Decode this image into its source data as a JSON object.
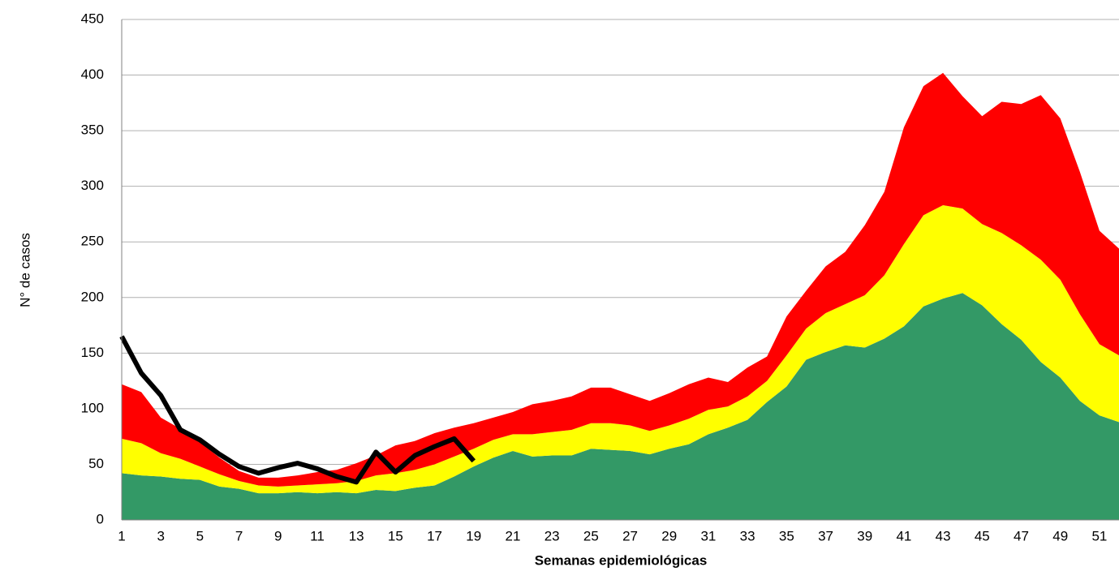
{
  "chart_data": {
    "type": "area",
    "xlabel": "Semanas epidemiológicas",
    "ylabel": "N° de  casos",
    "x": [
      1,
      2,
      3,
      4,
      5,
      6,
      7,
      8,
      9,
      10,
      11,
      12,
      13,
      14,
      15,
      16,
      17,
      18,
      19,
      20,
      21,
      22,
      23,
      24,
      25,
      26,
      27,
      28,
      29,
      30,
      31,
      32,
      33,
      34,
      35,
      36,
      37,
      38,
      39,
      40,
      41,
      42,
      43,
      44,
      45,
      46,
      47,
      48,
      49,
      50,
      51,
      52
    ],
    "xlim": [
      1,
      52
    ],
    "xticks": [
      1,
      3,
      5,
      7,
      9,
      11,
      13,
      15,
      17,
      19,
      21,
      23,
      25,
      27,
      29,
      31,
      33,
      35,
      37,
      39,
      41,
      43,
      45,
      47,
      49,
      51
    ],
    "ylim": [
      0,
      450
    ],
    "yticks": [
      0,
      50,
      100,
      150,
      200,
      250,
      300,
      350,
      400,
      450
    ],
    "grid": true,
    "series": [
      {
        "type": "area",
        "color": "#339966",
        "values": [
          42,
          40,
          39,
          37,
          36,
          30,
          28,
          24,
          24,
          25,
          24,
          25,
          24,
          27,
          26,
          29,
          31,
          39,
          48,
          56,
          62,
          57,
          58,
          58,
          64,
          63,
          62,
          59,
          64,
          68,
          77,
          83,
          90,
          106,
          120,
          144,
          151,
          157,
          155,
          163,
          174,
          192,
          199,
          204,
          193,
          176,
          162,
          142,
          128,
          107,
          94,
          88
        ]
      },
      {
        "type": "area",
        "color": "#ffff00",
        "values": [
          31,
          29,
          21,
          18,
          12,
          11,
          7,
          7,
          6,
          6,
          8,
          8,
          11,
          13,
          16,
          16,
          19,
          18,
          16,
          16,
          15,
          20,
          21,
          23,
          23,
          24,
          23,
          21,
          21,
          23,
          22,
          19,
          21,
          19,
          28,
          28,
          35,
          37,
          47,
          57,
          74,
          82,
          84,
          76,
          73,
          82,
          85,
          92,
          88,
          78,
          64,
          60
        ]
      },
      {
        "type": "area",
        "color": "#ff0000",
        "values": [
          49,
          46,
          32,
          27,
          22,
          15,
          9,
          7,
          8,
          9,
          11,
          12,
          16,
          18,
          25,
          26,
          28,
          26,
          23,
          20,
          20,
          27,
          28,
          30,
          32,
          32,
          28,
          27,
          29,
          31,
          29,
          22,
          26,
          22,
          35,
          34,
          42,
          47,
          63,
          75,
          105,
          116,
          119,
          101,
          97,
          118,
          127,
          148,
          145,
          128,
          102,
          96
        ]
      },
      {
        "type": "line",
        "color": "#000000",
        "values": [
          165,
          132,
          112,
          81,
          72,
          59,
          48,
          42,
          47,
          51,
          46,
          39,
          34,
          61,
          43,
          58,
          66,
          73,
          53,
          null,
          null,
          null,
          null,
          null,
          null,
          null,
          null,
          null,
          null,
          null,
          null,
          null,
          null,
          null,
          null,
          null,
          null,
          null,
          null,
          null,
          null,
          null,
          null,
          null,
          null,
          null,
          null,
          null,
          null,
          null,
          null,
          null
        ]
      }
    ]
  }
}
